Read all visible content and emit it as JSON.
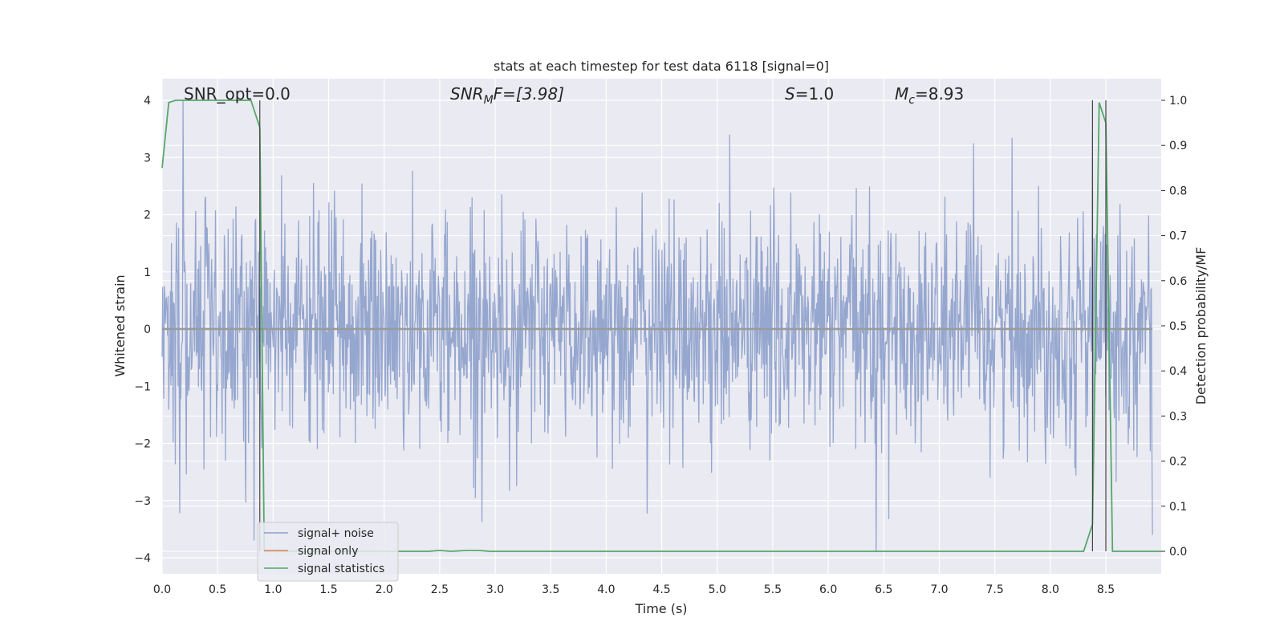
{
  "chart_data": {
    "type": "line",
    "title": "stats at each timestep for test data 6118 [signal=0]",
    "xlabel": "Time (s)",
    "ylabel": "Whitened strain",
    "y2label": "Detection probability/MF",
    "xlim": [
      0.0,
      9.0
    ],
    "ylim": [
      -4.3,
      4.4
    ],
    "y2lim": [
      -0.05,
      1.04
    ],
    "xticks": [
      "0.0",
      "0.5",
      "1.0",
      "1.5",
      "2.0",
      "2.5",
      "3.0",
      "3.5",
      "4.0",
      "4.5",
      "5.0",
      "5.5",
      "6.0",
      "6.5",
      "7.0",
      "7.5",
      "8.0",
      "8.5"
    ],
    "yticks": [
      "4",
      "3",
      "2",
      "1",
      "0",
      "−1",
      "−2",
      "−3",
      "−4"
    ],
    "y2ticks": [
      "1.0",
      "0.9",
      "0.8",
      "0.7",
      "0.6",
      "0.5",
      "0.4",
      "0.3",
      "0.2",
      "0.1",
      "0.0"
    ],
    "grid": true,
    "legend_position": "lower-left",
    "annotations": {
      "snr_opt": "SNR_opt=0.0",
      "snr_mf_main": "SNR",
      "snr_mf_sub": "M",
      "snr_mf_rest": "F=[3.98]",
      "s_italic": "S",
      "s_rest": "=1.0",
      "mc_main": "M",
      "mc_sub": "c",
      "mc_rest": "=8.93"
    },
    "series": [
      {
        "name": "signal+ noise",
        "color": "#8da0cb",
        "description_values": "white noise, amplitude mostly within [-2.5, 3.5]",
        "peaks": [
          {
            "x": 0.19,
            "y": 4.0
          },
          {
            "x": 0.83,
            "y": -3.7
          },
          {
            "x": 6.43,
            "y": -3.9
          },
          {
            "x": 8.38,
            "y": 3.45
          },
          {
            "x": 8.92,
            "y": -3.6
          }
        ]
      },
      {
        "name": "signal only",
        "color": "#dd8452",
        "x": [
          0.0,
          9.0
        ],
        "y": [
          0.0,
          0.0
        ]
      },
      {
        "name": "signal statistics",
        "color": "#55a868",
        "axis": "right",
        "x": [
          0.0,
          0.06,
          0.12,
          0.2,
          0.8,
          0.88,
          0.92,
          0.96,
          1.0,
          2.4,
          2.5,
          2.6,
          2.75,
          2.85,
          2.95,
          8.3,
          8.38,
          8.44,
          8.5,
          8.56,
          9.0
        ],
        "y": [
          0.85,
          0.995,
          1.0,
          1.0,
          1.0,
          0.94,
          0.0,
          0.0,
          0.0,
          0.0,
          0.002,
          0.0,
          0.002,
          0.002,
          0.0,
          0.0,
          0.06,
          0.995,
          0.95,
          0.0,
          0.0
        ]
      }
    ],
    "vertical_markers_x": [
      0.88,
      8.38,
      8.5
    ]
  }
}
